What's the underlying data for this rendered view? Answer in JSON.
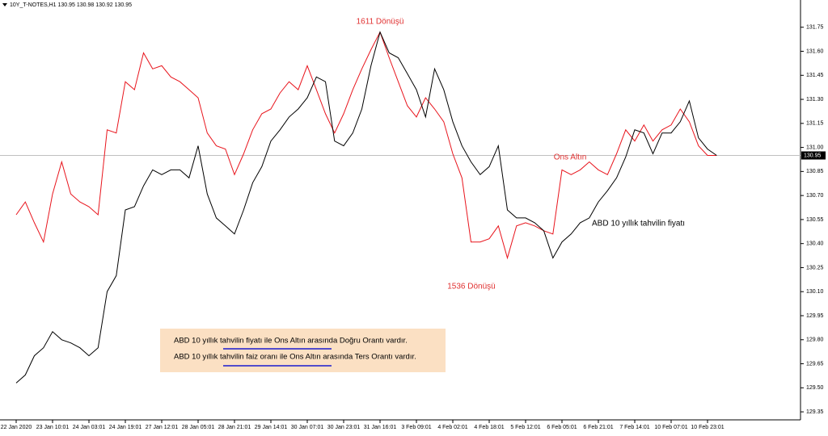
{
  "chart_data": {
    "type": "line",
    "header": "10Y_T-NOTES,H1  130.95 130.98 130.92 130.95",
    "annotations": [
      {
        "text": "1611 Dönüşü",
        "color": "#e03030"
      },
      {
        "text": "1536 Dönüşü",
        "color": "#e03030"
      },
      {
        "text": "Ons Altın",
        "color": "#e03030"
      },
      {
        "text": "ABD 10 yıllık tahvilin fiyatı",
        "color": "#000000"
      }
    ],
    "note": [
      "ABD 10 yıllık tahvilin fiyatı ile Ons Altın arasında Doğru  Orantı vardır.",
      "ABD 10 yıllık tahvilin faiz oranı ile Ons Altın arasında Ters  Orantı vardır."
    ],
    "price_line": 130.95,
    "categories": [
      "22 Jan 2020",
      null,
      null,
      null,
      "23 Jan 10:01",
      null,
      null,
      null,
      "24 Jan 03:01",
      null,
      null,
      null,
      "24 Jan 19:01",
      null,
      null,
      null,
      "27 Jan 12:01",
      null,
      null,
      null,
      "28 Jan 05:01",
      null,
      null,
      null,
      "28 Jan 21:01",
      null,
      null,
      null,
      "29 Jan 14:01",
      null,
      null,
      null,
      "30 Jan 07:01",
      null,
      null,
      null,
      "30 Jan 23:01",
      null,
      null,
      null,
      "31 Jan 16:01",
      null,
      null,
      null,
      "3 Feb 09:01",
      null,
      null,
      null,
      "4 Feb 02:01",
      null,
      null,
      null,
      "4 Feb 18:01",
      null,
      null,
      null,
      "5 Feb 12:01",
      null,
      null,
      null,
      "6 Feb 05:01",
      null,
      null,
      null,
      "6 Feb 21:01",
      null,
      null,
      null,
      "7 Feb 14:01",
      null,
      null,
      null,
      "10 Feb 07:01",
      null,
      null,
      null,
      "10 Feb 23:01",
      null
    ],
    "series": [
      {
        "color": "#e8141c",
        "values": [
          130.58,
          130.66,
          130.53,
          130.41,
          130.71,
          130.91,
          130.71,
          130.66,
          130.63,
          130.58,
          131.11,
          131.09,
          131.41,
          131.36,
          131.59,
          131.49,
          131.51,
          131.44,
          131.41,
          131.36,
          131.31,
          131.09,
          131.01,
          130.99,
          130.83,
          130.96,
          131.11,
          131.21,
          131.24,
          131.34,
          131.41,
          131.36,
          131.51,
          131.36,
          131.21,
          131.09,
          131.21,
          131.36,
          131.49,
          131.61,
          131.72,
          131.56,
          131.41,
          131.26,
          131.19,
          131.31,
          131.24,
          131.16,
          130.96,
          130.81,
          130.41,
          130.41,
          130.43,
          130.51,
          130.31,
          130.51,
          130.53,
          130.51,
          130.48,
          130.46,
          130.86,
          130.83,
          130.86,
          130.91,
          130.86,
          130.83,
          130.96,
          131.11,
          131.04,
          131.14,
          131.04,
          131.11,
          131.14,
          131.24,
          131.16,
          131.01,
          130.95,
          130.95
        ]
      },
      {
        "color": "#000000",
        "values": [
          129.53,
          129.58,
          129.7,
          129.75,
          129.85,
          129.8,
          129.78,
          129.75,
          129.7,
          129.75,
          130.1,
          130.2,
          130.61,
          130.63,
          130.76,
          130.86,
          130.83,
          130.86,
          130.86,
          130.81,
          131.01,
          130.71,
          130.56,
          130.51,
          130.46,
          130.61,
          130.78,
          130.88,
          131.04,
          131.11,
          131.19,
          131.24,
          131.31,
          131.44,
          131.41,
          131.04,
          131.01,
          131.09,
          131.24,
          131.51,
          131.72,
          131.59,
          131.56,
          131.46,
          131.36,
          131.19,
          131.49,
          131.36,
          131.16,
          131.01,
          130.91,
          130.83,
          130.88,
          131.01,
          130.61,
          130.56,
          130.56,
          130.53,
          130.48,
          130.31,
          130.41,
          130.46,
          130.53,
          130.56,
          130.66,
          130.73,
          130.81,
          130.94,
          131.11,
          131.09,
          130.96,
          131.09,
          131.09,
          131.16,
          131.29,
          131.06,
          130.99,
          130.95
        ]
      }
    ],
    "ylim": [
      129.3,
      131.92
    ],
    "yticks": [
      129.35,
      {
        "value": 129.5,
        "label": "129.50"
      },
      129.65,
      {
        "value": 129.8,
        "label": "129.80"
      },
      129.95,
      {
        "value": 130.1,
        "label": "130.10"
      },
      130.25,
      {
        "value": 130.4,
        "label": "130.40"
      },
      130.55,
      {
        "value": 130.7,
        "label": "130.70"
      },
      130.85,
      {
        "value": 131,
        "label": "131.00"
      },
      131.15,
      {
        "value": 131.3,
        "label": "131.30"
      },
      131.45,
      {
        "value": 131.6,
        "label": "131.60"
      },
      131.75
    ]
  }
}
